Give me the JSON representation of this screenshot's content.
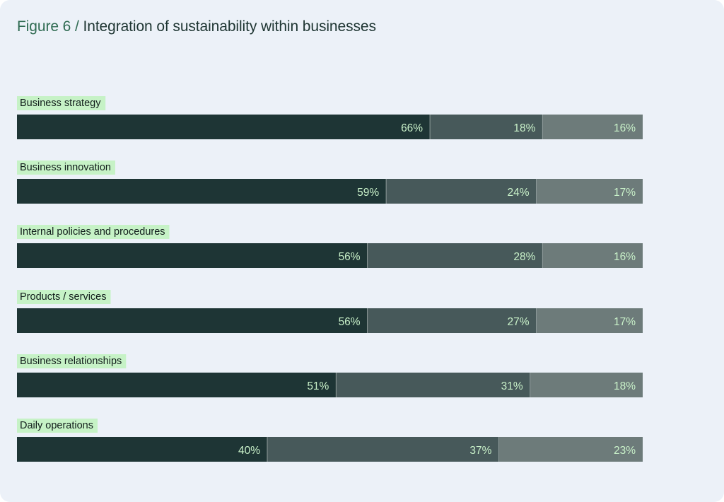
{
  "title": {
    "prefix": "Figure 6",
    "separator": "/",
    "main": "Integration of sustainability within businesses"
  },
  "colors": {
    "background": "#ecf1f8",
    "label_highlight": "#c6f2c6",
    "segment_1": "#1e3535",
    "segment_2": "#47595a",
    "segment_3": "#6d7b7a",
    "value_text": "#c9f1c9"
  },
  "chart_data": {
    "type": "bar",
    "orientation": "horizontal",
    "stacked": true,
    "normalized_percent": true,
    "title": "Integration of sustainability within businesses",
    "categories": [
      "Business strategy",
      "Business innovation",
      "Internal policies and procedures",
      "Products / services",
      "Business relationships",
      "Daily operations"
    ],
    "series": [
      {
        "values": [
          66,
          59,
          56,
          56,
          51,
          40
        ],
        "labels": [
          "66%",
          "59%",
          "56%",
          "56%",
          "51%",
          "40%"
        ]
      },
      {
        "values": [
          18,
          24,
          28,
          27,
          31,
          37
        ],
        "labels": [
          "18%",
          "24%",
          "28%",
          "27%",
          "31%",
          "37%"
        ]
      },
      {
        "values": [
          16,
          17,
          16,
          17,
          18,
          23
        ],
        "labels": [
          "16%",
          "17%",
          "16%",
          "17%",
          "18%",
          "23%"
        ]
      }
    ],
    "xlim": [
      0,
      100
    ],
    "grid": false,
    "legend": "none"
  }
}
